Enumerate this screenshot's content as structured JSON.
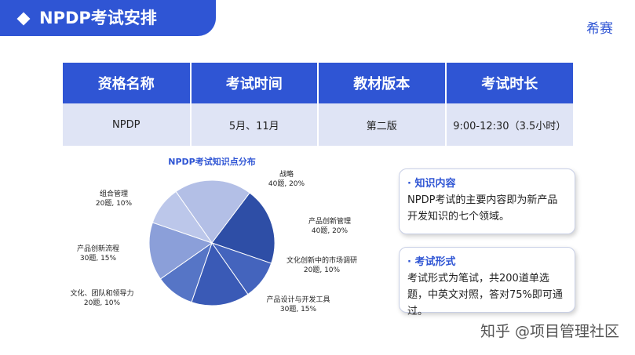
{
  "header": {
    "title": "NPDP考试安排",
    "logo": "希赛"
  },
  "table": {
    "columns": [
      "资格名称",
      "考试时间",
      "教材版本",
      "考试时长"
    ],
    "rows": [
      [
        "NPDP",
        "5月、11月",
        "第二版",
        "9:00-12:30（3.5小时）"
      ]
    ]
  },
  "chart_data": {
    "type": "pie",
    "title": "NPDP考试知识点分布",
    "categories": [
      "战略",
      "产品创新管理",
      "文化创新中的市场调研",
      "产品设计与开发工具",
      "文化、团队和领导力",
      "产品创新流程",
      "组合管理"
    ],
    "values": [
      20,
      20,
      10,
      15,
      10,
      15,
      10
    ],
    "value_labels": [
      "40题, 20%",
      "40题, 20%",
      "20题, 10%",
      "30题, 15%",
      "20题, 10%",
      "30题, 15%",
      "20题, 10%"
    ],
    "colors": [
      "#b3bfe6",
      "#2e4ea6",
      "#4464bd",
      "#3a5ab6",
      "#5675c6",
      "#8b9fd9",
      "#bcc7ea"
    ]
  },
  "cards": [
    {
      "title": "· 知识内容",
      "text": "NPDP考试的主要内容即为新产品开发知识的七个领域。"
    },
    {
      "title": "· 考试形式",
      "text": "考试形式为笔试，共200道单选题，中英文对照，答对75%即可通过。"
    }
  ],
  "watermark": "知乎 @项目管理社区"
}
